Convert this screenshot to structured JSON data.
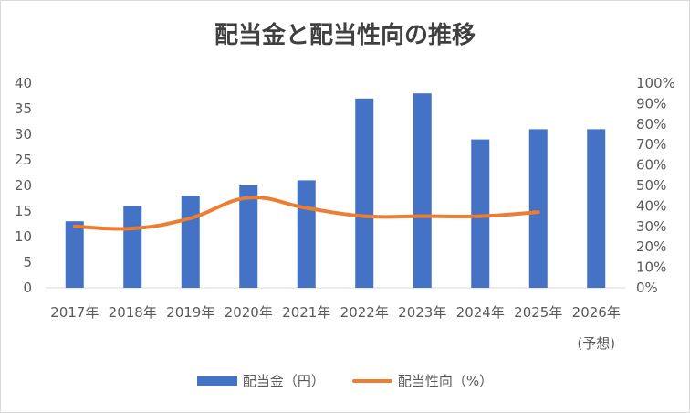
{
  "chart_data": {
    "type": "bar",
    "title": "配当金と配当性向の推移",
    "categories": [
      "2017年",
      "2018年",
      "2019年",
      "2020年",
      "2021年",
      "2022年",
      "2023年",
      "2024年",
      "2025年",
      "2026年"
    ],
    "category_sublabels": [
      "",
      "",
      "",
      "",
      "",
      "",
      "",
      "",
      "",
      "(予想)"
    ],
    "series": [
      {
        "name": "配当金（円）",
        "type": "bar",
        "axis": "left",
        "color": "#4472c4",
        "values": [
          13,
          16,
          18,
          20,
          21,
          37,
          38,
          29,
          31,
          31
        ]
      },
      {
        "name": "配当性向（%）",
        "type": "line",
        "axis": "right",
        "color": "#ed7d31",
        "values": [
          30,
          29,
          34,
          44,
          39,
          35,
          35,
          35,
          37,
          null
        ]
      }
    ],
    "y_left": {
      "range": [
        0,
        40
      ],
      "ticks": [
        "0",
        "5",
        "10",
        "15",
        "20",
        "25",
        "30",
        "35",
        "40"
      ]
    },
    "y_right": {
      "range": [
        0,
        100
      ],
      "ticks": [
        "0%",
        "10%",
        "20%",
        "30%",
        "40%",
        "50%",
        "60%",
        "70%",
        "80%",
        "90%",
        "100%"
      ]
    },
    "grid": false,
    "legend_position": "bottom"
  }
}
